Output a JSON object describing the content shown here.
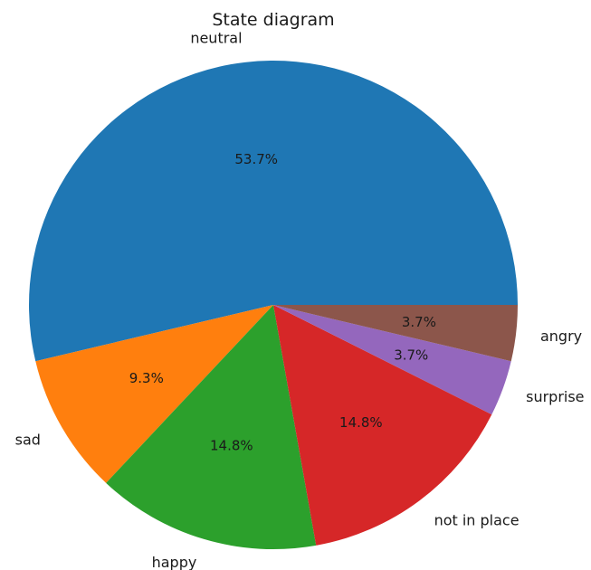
{
  "chart_data": {
    "type": "pie",
    "title": "State diagram",
    "start_angle_deg": 0,
    "direction": "counterclockwise",
    "slices": [
      {
        "label": "neutral",
        "value": 53.7,
        "pct_label": "53.7%",
        "color": "#1f77b4"
      },
      {
        "label": "sad",
        "value": 9.3,
        "pct_label": "9.3%",
        "color": "#ff7f0e"
      },
      {
        "label": "happy",
        "value": 14.8,
        "pct_label": "14.8%",
        "color": "#2ca02c"
      },
      {
        "label": "not in place",
        "value": 14.8,
        "pct_label": "14.8%",
        "color": "#d62728"
      },
      {
        "label": "surprise",
        "value": 3.7,
        "pct_label": "3.7%",
        "color": "#9467bd"
      },
      {
        "label": "angry",
        "value": 3.7,
        "pct_label": "3.7%",
        "color": "#8c564b"
      }
    ]
  }
}
